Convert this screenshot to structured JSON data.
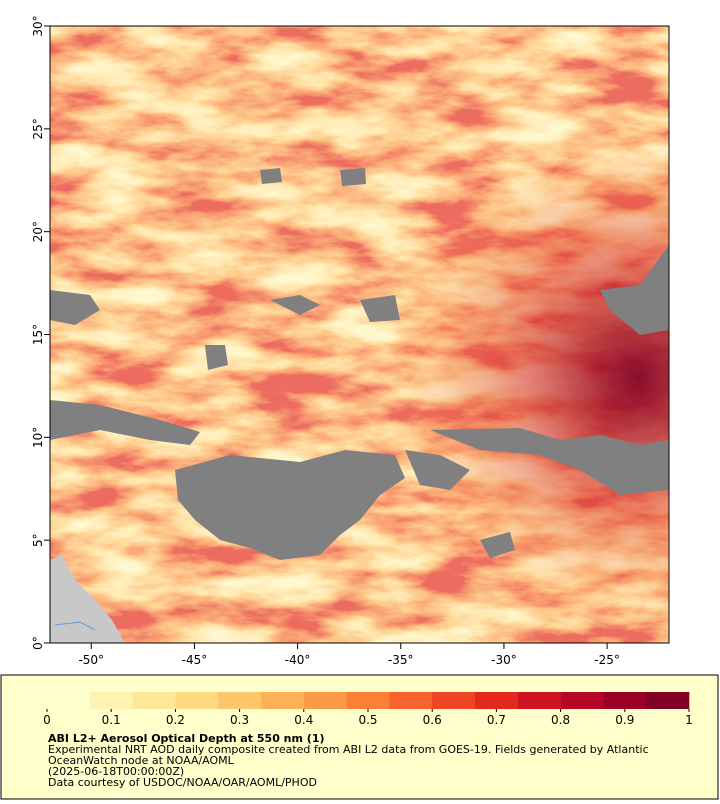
{
  "map": {
    "xlim": [
      -52,
      -22
    ],
    "ylim": [
      0,
      30
    ],
    "xticks": [
      {
        "value": -50,
        "label": "-50°"
      },
      {
        "value": -45,
        "label": "-45°"
      },
      {
        "value": -40,
        "label": "-40°"
      },
      {
        "value": -35,
        "label": "-35°"
      },
      {
        "value": -30,
        "label": "-30°"
      },
      {
        "value": -25,
        "label": "-25°"
      }
    ],
    "yticks": [
      {
        "value": 0,
        "label": "0°"
      },
      {
        "value": 5,
        "label": "5°"
      },
      {
        "value": 10,
        "label": "10°"
      },
      {
        "value": 15,
        "label": "15°"
      },
      {
        "value": 20,
        "label": "20°"
      },
      {
        "value": 25,
        "label": "25°"
      },
      {
        "value": 30,
        "label": "30°"
      }
    ]
  },
  "colorbar": {
    "range": [
      0,
      1
    ],
    "ticks": [
      0,
      0.1,
      0.2,
      0.3,
      0.4,
      0.5,
      0.6,
      0.7,
      0.8,
      0.9,
      1
    ],
    "colors": [
      "#ffffcc",
      "#fff3b3",
      "#ffe79a",
      "#fed980",
      "#fec66a",
      "#feb255",
      "#fd9a46",
      "#fc7f38",
      "#f9612d",
      "#f04524",
      "#e3281e",
      "#cf1421",
      "#b60626",
      "#9a0026",
      "#800026"
    ]
  },
  "legend": {
    "title": "ABI L2+ Aerosol Optical Depth at 550 nm (1)",
    "lines": [
      "Experimental NRT AOD daily composite created from ABI L2 data from GOES-19. Fields generated by Atlantic",
      "OceanWatch node at NOAA/AOML",
      "(2025-06-18T00:00:00Z)",
      "Data courtesy of USDOC/NOAA/OAR/AOML/PHOD"
    ]
  }
}
